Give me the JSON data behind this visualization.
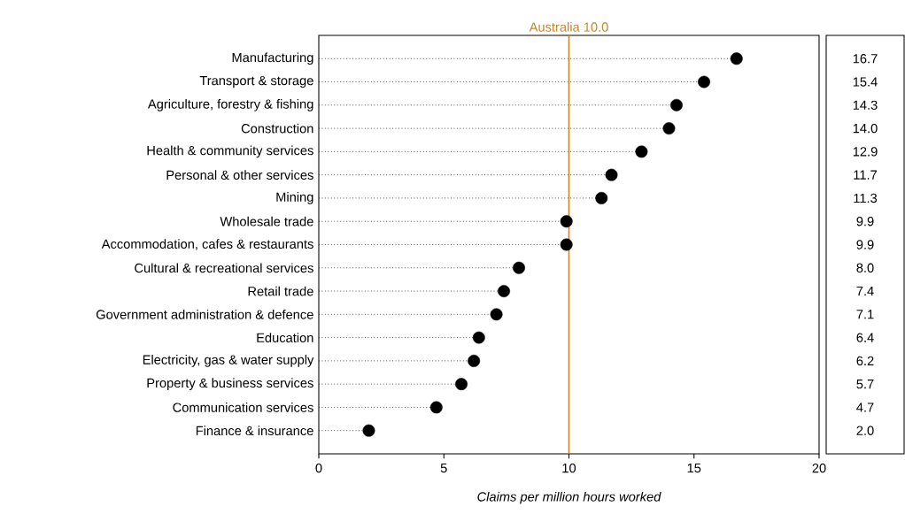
{
  "chart_data": {
    "type": "lollipop",
    "orientation": "horizontal",
    "categories": [
      "Manufacturing",
      "Transport & storage",
      "Agriculture, forestry & fishing",
      "Construction",
      "Health & community services",
      "Personal & other services",
      "Mining",
      "Wholesale trade",
      "Accommodation, cafes & restaurants",
      "Cultural & recreational services",
      "Retail trade",
      "Government administration & defence",
      "Education",
      "Electricity, gas & water supply",
      "Property & business services",
      "Communication services",
      "Finance & insurance"
    ],
    "values": [
      16.7,
      15.4,
      14.3,
      14.0,
      12.9,
      11.7,
      11.3,
      9.9,
      9.9,
      8.0,
      7.4,
      7.1,
      6.4,
      6.2,
      5.7,
      4.7,
      2.0
    ],
    "value_labels": [
      "16.7",
      "15.4",
      "14.3",
      "14.0",
      "12.9",
      "11.7",
      "11.3",
      "9.9",
      "9.9",
      "8.0",
      "7.4",
      "7.1",
      "6.4",
      "6.2",
      "5.7",
      "4.7",
      "2.0"
    ],
    "color": "#000000",
    "line_style": "dotted",
    "xlim": [
      0,
      20
    ],
    "xticks": [
      0,
      5,
      10,
      15,
      20
    ],
    "xlabel": "Claims per million hours worked",
    "ref_lines": [
      {
        "axis": "x",
        "value": 10,
        "label": "Australia 10.0",
        "color": "#c8862a"
      }
    ],
    "grid": false
  }
}
